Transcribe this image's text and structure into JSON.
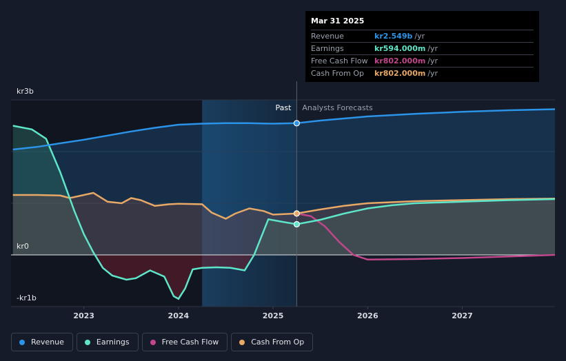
{
  "chart_data": {
    "type": "line",
    "x_ticks": [
      2023,
      2024,
      2025,
      2026,
      2027
    ],
    "y_ticks": [
      {
        "value": 3,
        "label": "kr3b"
      },
      {
        "value": 0,
        "label": "kr0"
      },
      {
        "value": -1,
        "label": "-kr1b"
      }
    ],
    "ylim": [
      -1,
      3
    ],
    "xlim": [
      2022.23,
      2027.98
    ],
    "past_start": 2024.25,
    "forecast_start": 2025.25,
    "past_label": "Past",
    "forecast_label": "Analysts Forecasts",
    "series": [
      {
        "name": "Revenue",
        "color": "#2b94e8",
        "x": [
          2022.25,
          2022.5,
          2022.75,
          2023.0,
          2023.25,
          2023.5,
          2023.75,
          2024.0,
          2024.25,
          2024.5,
          2024.75,
          2025.0,
          2025.25,
          2025.5,
          2025.75,
          2026.0,
          2026.5,
          2027.0,
          2027.5,
          2027.98
        ],
        "values": [
          2.04,
          2.09,
          2.16,
          2.23,
          2.31,
          2.39,
          2.46,
          2.52,
          2.54,
          2.55,
          2.55,
          2.54,
          2.549,
          2.6,
          2.64,
          2.68,
          2.73,
          2.77,
          2.8,
          2.82
        ]
      },
      {
        "name": "Earnings",
        "color": "#5ee6c9",
        "x": [
          2022.25,
          2022.45,
          2022.6,
          2022.75,
          2022.9,
          2023.0,
          2023.1,
          2023.2,
          2023.3,
          2023.45,
          2023.55,
          2023.7,
          2023.85,
          2023.95,
          2024.0,
          2024.07,
          2024.15,
          2024.25,
          2024.4,
          2024.55,
          2024.7,
          2024.8,
          2024.95,
          2025.1,
          2025.25,
          2025.5,
          2025.75,
          2026.0,
          2026.25,
          2026.5,
          2027.0,
          2027.5,
          2027.98
        ],
        "values": [
          2.5,
          2.43,
          2.25,
          1.6,
          0.85,
          0.4,
          0.05,
          -0.25,
          -0.4,
          -0.48,
          -0.45,
          -0.3,
          -0.42,
          -0.8,
          -0.85,
          -0.65,
          -0.28,
          -0.25,
          -0.24,
          -0.25,
          -0.3,
          0.0,
          0.69,
          0.64,
          0.594,
          0.68,
          0.8,
          0.9,
          0.96,
          1.0,
          1.03,
          1.06,
          1.08
        ]
      },
      {
        "name": "Free Cash Flow",
        "color": "#c2468b",
        "x": [
          2025.25,
          2025.4,
          2025.55,
          2025.7,
          2025.85,
          2026.0,
          2026.5,
          2027.0,
          2027.5,
          2027.98
        ],
        "values": [
          0.802,
          0.75,
          0.55,
          0.25,
          0.0,
          -0.09,
          -0.08,
          -0.06,
          -0.03,
          0.0
        ]
      },
      {
        "name": "Cash From Op",
        "color": "#e8a866",
        "x": [
          2022.25,
          2022.5,
          2022.75,
          2022.85,
          2023.0,
          2023.1,
          2023.25,
          2023.4,
          2023.5,
          2023.6,
          2023.75,
          2023.9,
          2024.0,
          2024.25,
          2024.35,
          2024.5,
          2024.6,
          2024.75,
          2024.9,
          2025.0,
          2025.25,
          2025.5,
          2025.75,
          2026.0,
          2026.5,
          2027.0,
          2027.5,
          2027.98
        ],
        "values": [
          1.16,
          1.16,
          1.15,
          1.1,
          1.16,
          1.2,
          1.03,
          1.0,
          1.1,
          1.06,
          0.95,
          0.98,
          0.99,
          0.98,
          0.82,
          0.7,
          0.8,
          0.9,
          0.85,
          0.78,
          0.802,
          0.88,
          0.95,
          1.0,
          1.04,
          1.06,
          1.08,
          1.09
        ]
      }
    ]
  },
  "tooltip": {
    "date": "Mar 31 2025",
    "rows": [
      {
        "name": "Revenue",
        "value": "kr2.549b",
        "unit": "/yr",
        "color": "#2b94e8"
      },
      {
        "name": "Earnings",
        "value": "kr594.000m",
        "unit": "/yr",
        "color": "#5ee6c9"
      },
      {
        "name": "Free Cash Flow",
        "value": "kr802.000m",
        "unit": "/yr",
        "color": "#c2468b"
      },
      {
        "name": "Cash From Op",
        "value": "kr802.000m",
        "unit": "/yr",
        "color": "#e8a866"
      }
    ]
  },
  "legend": [
    {
      "label": "Revenue",
      "color": "#2b94e8"
    },
    {
      "label": "Earnings",
      "color": "#5ee6c9"
    },
    {
      "label": "Free Cash Flow",
      "color": "#c2468b"
    },
    {
      "label": "Cash From Op",
      "color": "#e8a866"
    }
  ]
}
